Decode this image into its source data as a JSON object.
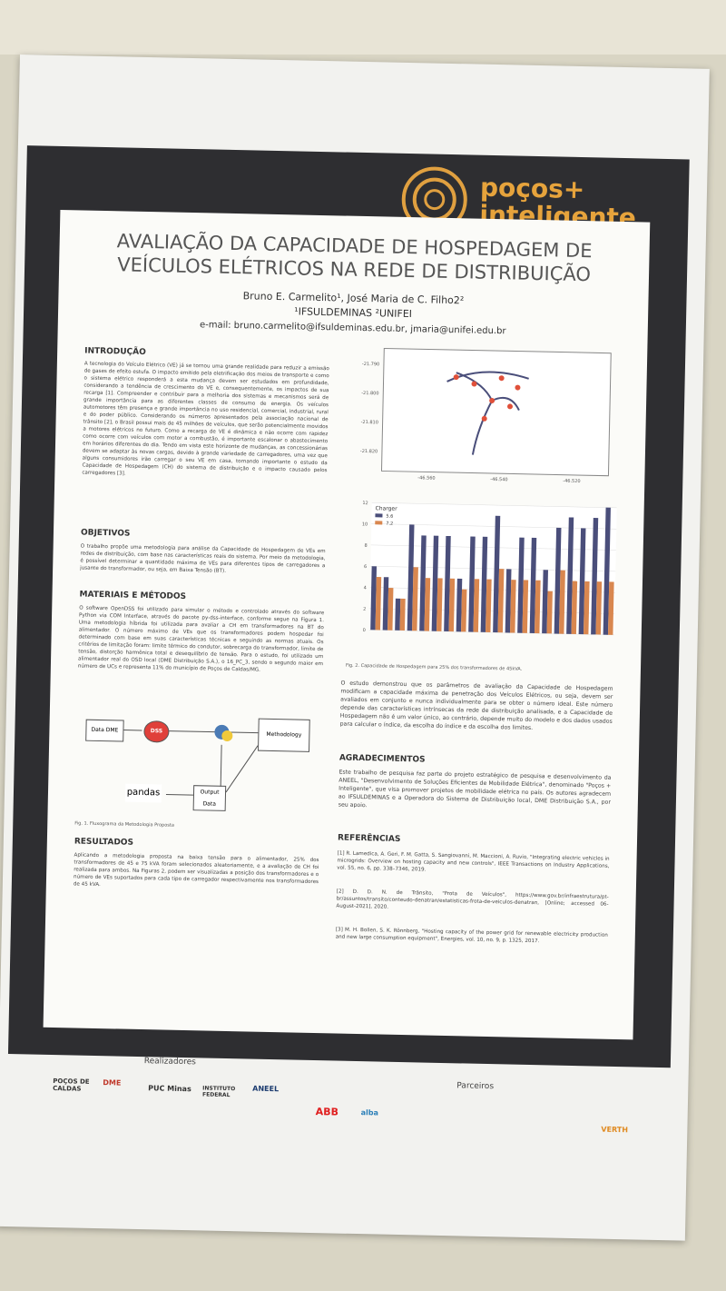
{
  "brand": {
    "name": "poços+",
    "tagline": "inteligente"
  },
  "header": {
    "title": "AVALIAÇÃO DA CAPACIDADE DE HOSPEDAGEM DE VEÍCULOS ELÉTRICOS NA REDE DE DISTRIBUIÇÃO",
    "authors": "Bruno E. Carmelito¹, José Maria de C. Filho2²",
    "affiliations": "¹IFSULDEMINAS   ²UNIFEI",
    "email": "e-mail: bruno.carmelito@ifsuldeminas.edu.br, jmaria@unifei.edu.br"
  },
  "sections": {
    "intro": {
      "heading": "INTRODUÇÃO",
      "text": "A tecnologia do Veículo Elétrico (VE) já se tornou uma grande realidade para reduzir a emissão de gases de efeito estufa. O impacto emitido pela eletrificação dos meios de transporte e como o sistema elétrico responderá a esta mudança devem ser estudados em profundidade, considerando a tendência de crescimento do VE e, consequentemente, os impactos de sua recarga [1]. Compreender e contribuir para a melhoria dos sistemas e mecanismos será de grande importância para as diferentes classes de consumo de energia. Os veículos automotores têm presença e grande importância no uso residencial, comercial, industrial, rural e do poder público. Considerando os números apresentados pela associação nacional de trânsito [2], o Brasil possui mais de 45 milhões de veículos, que serão potencialmente movidos a motores elétricos no futuro. Como a recarga de VE é dinâmica e não ocorre com rapidez como ocorre com veículos com motor a combustão, é importante escalonar o abastecimento em horários diferentes do dia. Tendo em vista este horizonte de mudanças, as concessionárias devem se adaptar às novas cargas, devido à grande variedade de carregadores, uma vez que alguns consumidores irão carregar o seu VE em casa, tornando importante o estudo da Capacidade de Hospedagem (CH) do sistema de distribuição e o impacto causado pelos carregadores [3]."
    },
    "objetivos": {
      "heading": "OBJETIVOS",
      "text": "O trabalho propõe uma metodologia para análise da Capacidade de Hospedagem de VEs em redes de distribuição, com base nas características reais do sistema. Por meio da metodologia, é possível determinar a quantidade máxima de VEs para diferentes tipos de carregadores a jusante do transformador, ou seja, em Baixa Tensão (BT)."
    },
    "materiais": {
      "heading": "MATERIAIS E MÉTODOS",
      "text": "O software OpenDSS foi utilizado para simular o método e controlado através do software Python via COM Interface, através do pacote py-dss-interface, conforme segue na Figura 1. Uma metodologia híbrida foi utilizada para avaliar a CH em transformadores na BT do alimentador. O número máximo de VEs que os transformadores podem hospedar foi determinado com base em suas características técnicas e seguindo as normas atuais. Os critérios de limitação foram: limite térmico do condutor, sobrecarga do transformador, limite de tensão, distorção harmônica total e desequilíbrio de tensão. Para o estudo, foi utilizado um alimentador real do OSD local (DME Distribuição S.A.), o 16_PC_3, sendo o segundo maior em número de UCs e representa 11% do município de Poços de Caldas/MG."
    },
    "resultados": {
      "heading": "RESULTADOS",
      "text": "Aplicando a metodologia proposta na baixa tensão para o alimentador, 25% dos transformadores de 45 e 75 kVA foram selecionados aleatoriamente, e a avaliação de CH foi realizada para ambos. Na Figuras 2, podem ser visualizadas a posição dos transformadores e o número de VEs suportados para cada tipo de carregador respectivamente nos transformadores de 45 kVA."
    },
    "conclusao": {
      "text": "O estudo demonstrou que os parâmetros de avaliação da Capacidade de Hospedagem modificam a capacidade máxima de penetração dos Veículos Elétricos, ou seja, devem ser avaliados em conjunto e nunca individualmente para se obter o número ideal. Este número depende das características intrínsecas da rede de distribuição analisada, e a Capacidade de Hospedagem não é um valor único, ao contrário, depende muito do modelo e dos dados usados para calcular o índice, da escolha do índice e da escolha dos limites."
    },
    "agradecimentos": {
      "heading": "AGRADECIMENTOS",
      "text": "Este trabalho de pesquisa faz parte do projeto estratégico de pesquisa e desenvolvimento da ANEEL, \"Desenvolvimento de Soluções Eficientes de Mobilidade Elétrica\", denominado \"Poços + Inteligente\", que visa promover projetos de mobilidade elétrica no país. Os autores agradecem ao IFSULDEMINAS e a Operadora do Sistema de Distribuição local, DME Distribuição S.A., por seu apoio."
    },
    "referencias": {
      "heading": "REFERÊNCIAS",
      "items": [
        "[1] R. Lamedica, A. Geri, F. M. Gatta, S. Sangiovanni, M. Maccioni, A. Ruvio, \"Integrating electric vehicles in microgrids: Overview on hosting capacity and new controls\", IEEE Transactions on Industry Applications, vol. 55, no. 6, pp. 338–7346, 2019.",
        "[2] D. D. N. de Trânsito, \"Frota de Veículos\", https://www.gov.br/infraestrutura/pt-br/assuntos/transito/conteudo-denatran/estatisticas-frota-de-veiculos-denatran, [Online; accessed 06-August-2021], 2020.",
        "[3] M. H. Bollen, S. K. Rönnberg, \"Hosting capacity of the power grid for renewable electricity production and new large consumption equipment\", Energies, vol. 10, no. 9, p. 1325, 2017."
      ]
    }
  },
  "figure1": {
    "nodes": [
      "Data DME",
      "DSS",
      "Methodology",
      "pandas",
      "Output Data"
    ],
    "caption": "Fig. 1. Fluxograma da Metodologia Proposta"
  },
  "map": {
    "yticks": [
      "-21.790",
      "-21.800",
      "-21.810",
      "-21.820"
    ],
    "xticks": [
      "-46.560",
      "-46.540",
      "-46.520"
    ]
  },
  "chart_data": {
    "type": "bar",
    "legend_title": "Charger",
    "caption": "Fig. 2. Capacidade de Hospedagem para 25% dos transformadores de 45kVA.",
    "categories": [
      null,
      null,
      null,
      null,
      null,
      null,
      null,
      null,
      null,
      null,
      null,
      null,
      null,
      null,
      null,
      null,
      null,
      null,
      null,
      null
    ],
    "series": [
      {
        "name": "5.6",
        "color": "#4a4e7a",
        "values": [
          6,
          5,
          3,
          10,
          9,
          9,
          9,
          5,
          9,
          9,
          11,
          6,
          9,
          9,
          6,
          10,
          11,
          10,
          11,
          12
        ]
      },
      {
        "name": "7.2",
        "color": "#d9874f",
        "values": [
          5,
          4,
          3,
          6,
          5,
          5,
          5,
          4,
          5,
          5,
          6,
          5,
          5,
          5,
          4,
          6,
          5,
          5,
          5,
          5
        ]
      }
    ],
    "ylim": [
      0,
      12
    ],
    "yticks": [
      0,
      2,
      4,
      6,
      8,
      10,
      12
    ],
    "grid": true
  },
  "footer": {
    "realizadores": "Realizadores",
    "parceiros": "Parceiros",
    "logos": [
      "POÇOS DE CALDAS",
      "DME",
      "PUC Minas",
      "INSTITUTO FEDERAL",
      "ANEEL"
    ],
    "partners": [
      "ABB",
      "alba",
      "VERTH"
    ]
  }
}
